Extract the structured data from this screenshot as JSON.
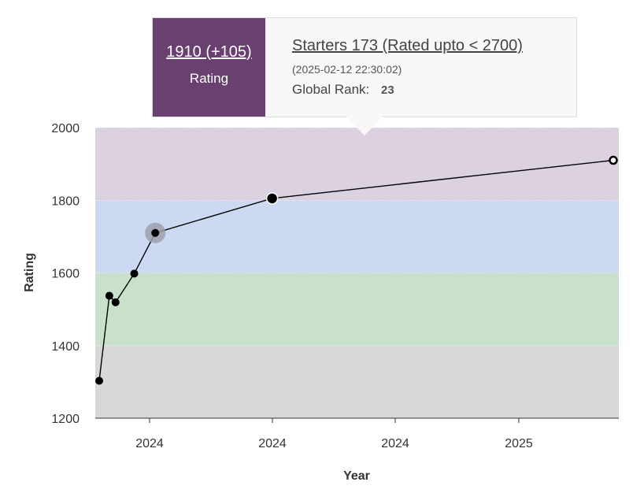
{
  "tooltip": {
    "rating": "1910 (+105)",
    "rating_caption": "Rating",
    "contest_name": "Starters 173 (Rated upto < 2700)",
    "contest_date": "(2025-02-12 22:30:02)",
    "global_rank_label": "Global Rank:",
    "global_rank_value": "23"
  },
  "chart_data": {
    "type": "line",
    "xlabel": "Year",
    "ylabel": "Rating",
    "ylim": [
      1200,
      2000
    ],
    "yticks": [
      1200,
      1400,
      1600,
      1800,
      2000
    ],
    "xtick_labels": [
      "2024",
      "2024",
      "2024",
      "2025"
    ],
    "grid": false,
    "bands": [
      {
        "from": 1200,
        "to": 1400,
        "color": "#d8d8d8"
      },
      {
        "from": 1400,
        "to": 1600,
        "color": "#c9e0cb"
      },
      {
        "from": 1600,
        "to": 1800,
        "color": "#ccd9f3"
      },
      {
        "from": 1800,
        "to": 2000,
        "color": "#dcd2df"
      }
    ],
    "series": [
      {
        "values": [
          1303,
          1537,
          1519,
          1598,
          1710,
          1805,
          1910
        ],
        "date_index": [
          0,
          0.13,
          0.21,
          0.45,
          0.72,
          2.22,
          6.6
        ],
        "highlighted_index": 4,
        "selected_index": 6
      }
    ],
    "colors": {
      "line": "#000000",
      "highlight": "#9ba0aa"
    }
  }
}
